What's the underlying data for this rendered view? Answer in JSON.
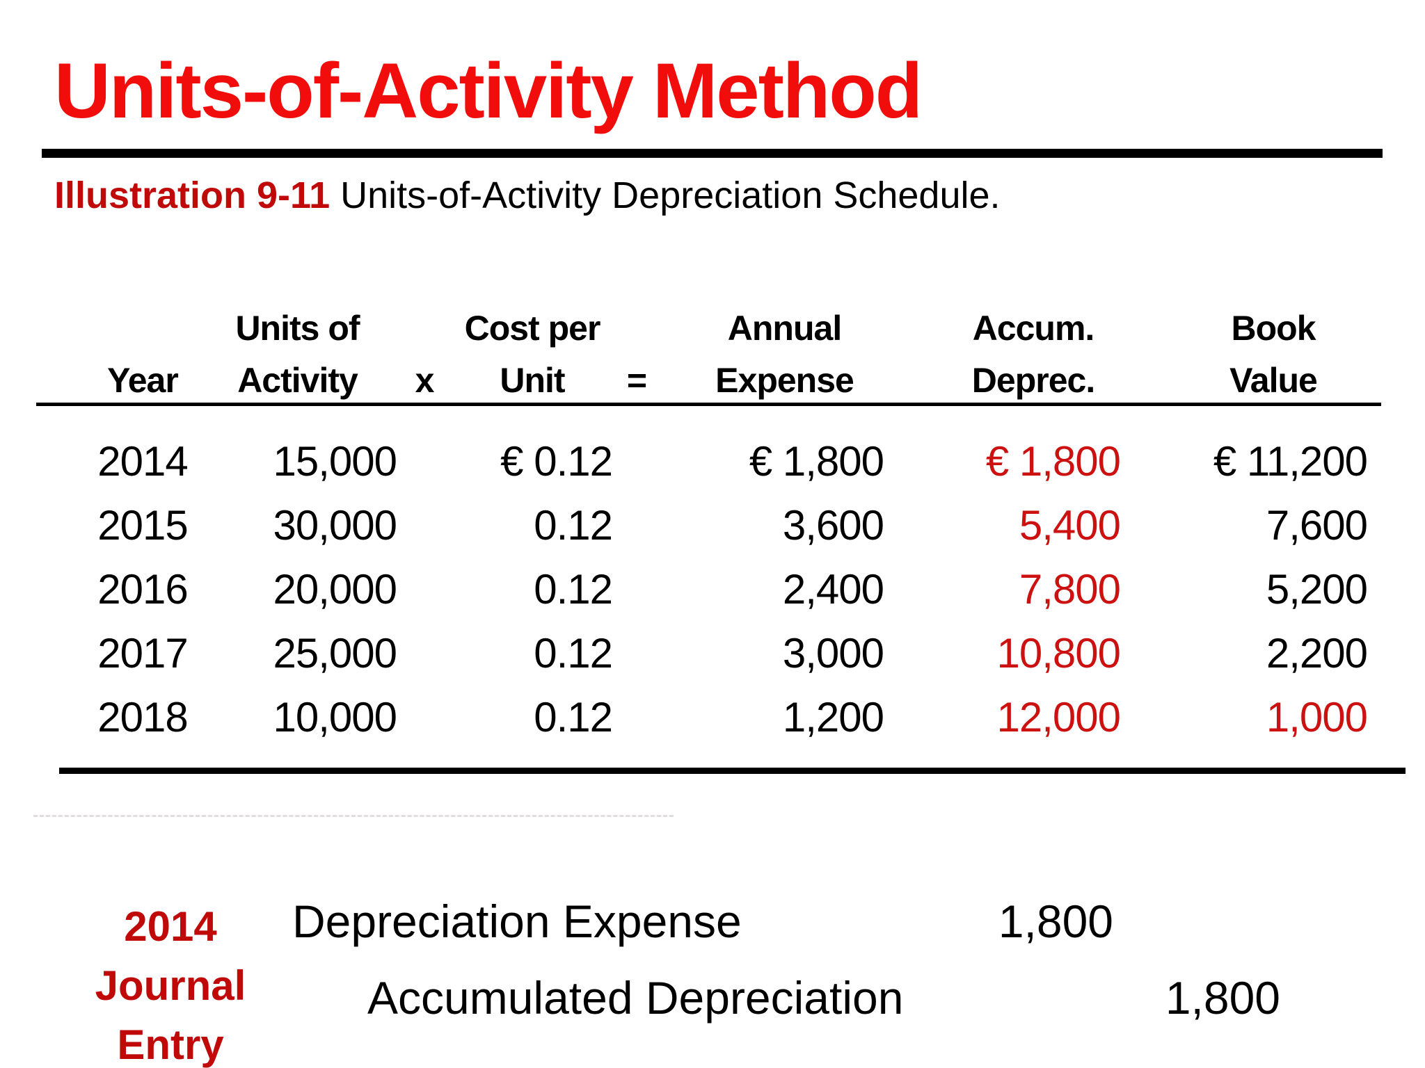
{
  "slide": {
    "title": "Units-of-Activity Method",
    "subtitle_label": "Illustration 9-11",
    "subtitle_text": " Units-of-Activity Depreciation Schedule.",
    "colors": {
      "title_red": "#f20d0d",
      "dark_red": "#c00a0a",
      "value_red": "#cc1111",
      "rule_black": "#000000"
    }
  },
  "table": {
    "header_row1": {
      "units": "Units of",
      "cost": "Cost per",
      "annual": "Annual",
      "accum": "Accum.",
      "book": "Book"
    },
    "header_row2": {
      "year": "Year",
      "units": "Activity",
      "x": "x",
      "cost": "Unit",
      "eq": "=",
      "annual": "Expense",
      "accum": "Deprec.",
      "book": "Value"
    },
    "rows": [
      {
        "year": "2014",
        "units": "15,000",
        "cost": "€ 0.12",
        "annual": "€ 1,800",
        "accum": "€ 1,800",
        "book": "€ 11,200"
      },
      {
        "year": "2015",
        "units": "30,000",
        "cost": "0.12",
        "annual": "3,600",
        "accum": "5,400",
        "book": "7,600"
      },
      {
        "year": "2016",
        "units": "20,000",
        "cost": "0.12",
        "annual": "2,400",
        "accum": "7,800",
        "book": "5,200"
      },
      {
        "year": "2017",
        "units": "25,000",
        "cost": "0.12",
        "annual": "3,000",
        "accum": "10,800",
        "book": "2,200"
      },
      {
        "year": "2018",
        "units": "10,000",
        "cost": "0.12",
        "annual": "1,200",
        "accum": "12,000",
        "book": "1,000"
      }
    ]
  },
  "journal": {
    "label_line1": "2014",
    "label_line2": "Journal",
    "label_line3": "Entry",
    "debit_account": "Depreciation Expense",
    "debit_amount": "1,800",
    "credit_account": "Accumulated Depreciation",
    "credit_amount": "1,800"
  }
}
